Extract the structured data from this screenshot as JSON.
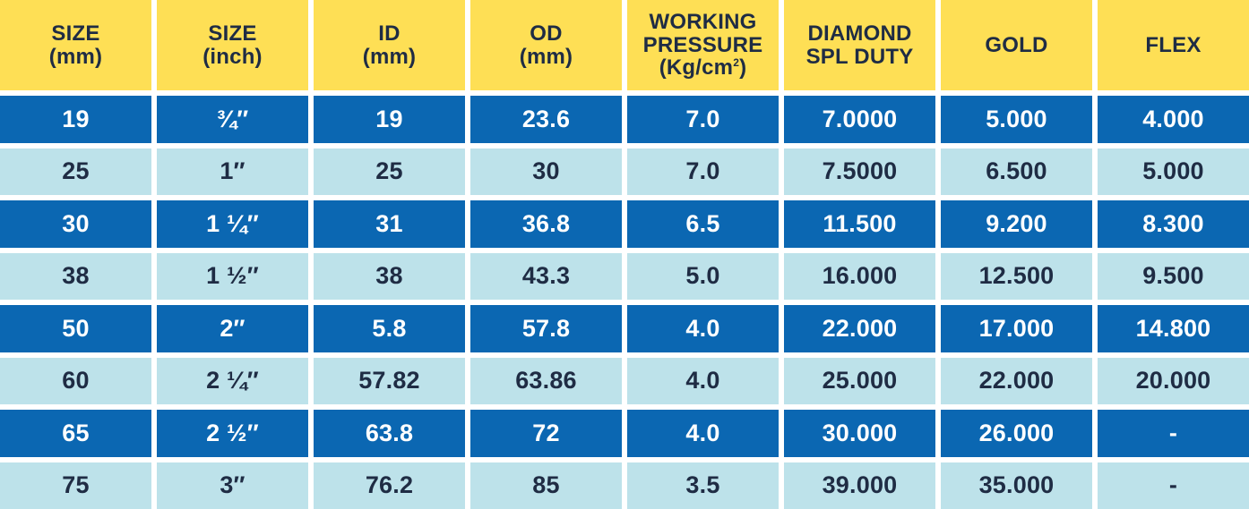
{
  "headers": [
    [
      "SIZE",
      "(mm)"
    ],
    [
      "SIZE",
      "(inch)"
    ],
    [
      "ID",
      "(mm)"
    ],
    [
      "OD",
      "(mm)"
    ],
    [
      "WORKING",
      "PRESSURE",
      "(Kg/cm2)"
    ],
    [
      "DIAMOND",
      "SPL DUTY"
    ],
    [
      "GOLD"
    ],
    [
      "FLEX"
    ]
  ],
  "rows": [
    [
      "19",
      "¾″",
      "19",
      "23.6",
      "7.0",
      "7.0000",
      "5.000",
      "4.000"
    ],
    [
      "25",
      "1″",
      "25",
      "30",
      "7.0",
      "7.5000",
      "6.500",
      "5.000"
    ],
    [
      "30",
      "1 ¼″",
      "31",
      "36.8",
      "6.5",
      "11.500",
      "9.200",
      "8.300"
    ],
    [
      "38",
      "1 ½″",
      "38",
      "43.3",
      "5.0",
      "16.000",
      "12.500",
      "9.500"
    ],
    [
      "50",
      "2″",
      "5.8",
      "57.8",
      "4.0",
      "22.000",
      "17.000",
      "14.800"
    ],
    [
      "60",
      "2 ¼″",
      "57.82",
      "63.86",
      "4.0",
      "25.000",
      "22.000",
      "20.000"
    ],
    [
      "65",
      "2 ½″",
      "63.8",
      "72",
      "4.0",
      "30.000",
      "26.000",
      "-"
    ],
    [
      "75",
      "3″",
      "76.2",
      "85",
      "3.5",
      "39.000",
      "35.000",
      "-"
    ]
  ],
  "colors": {
    "header_bg": "#fedf55",
    "row_dark": "#0b67b2",
    "row_light": "#bde2ea"
  }
}
